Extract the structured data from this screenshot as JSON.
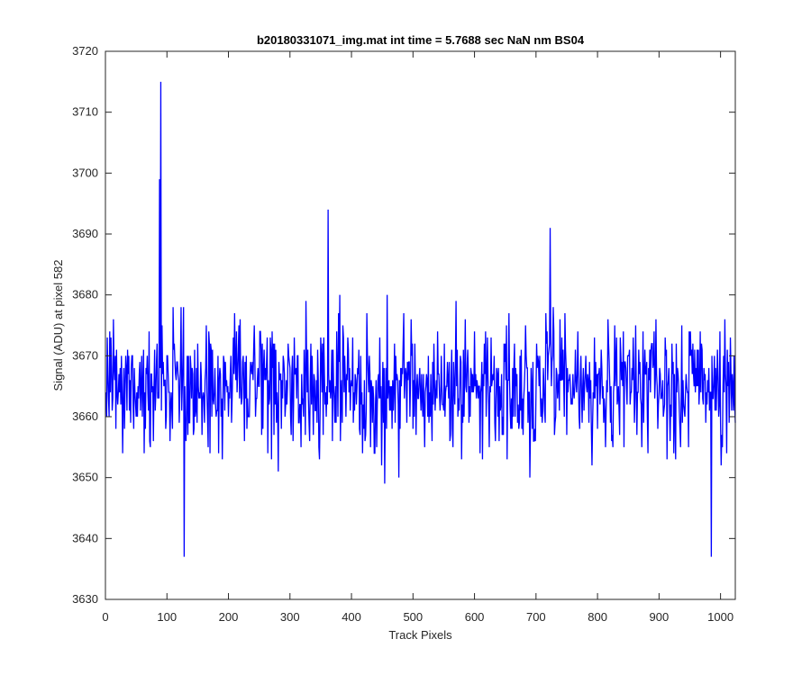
{
  "chart_data": {
    "type": "line",
    "title": "b20180331071_img.mat int time = 5.7688 sec  NaN nm BS04",
    "xlabel": "Track Pixels",
    "ylabel": "Signal (ADU) at pixel 582",
    "xlim": [
      0,
      1024
    ],
    "ylim": [
      3630,
      3720
    ],
    "xticks": [
      0,
      100,
      200,
      300,
      400,
      500,
      600,
      700,
      800,
      900,
      1000
    ],
    "yticks": [
      3630,
      3640,
      3650,
      3660,
      3670,
      3680,
      3690,
      3700,
      3710,
      3720
    ],
    "grid": false,
    "legend": "none",
    "line_color": "#0000ff",
    "series": [
      {
        "x_start": 1,
        "x_step": 1,
        "approx_mean": 3665,
        "approx_range": [
          3637,
          3715
        ],
        "notable_points": [
          {
            "x": 88,
            "y": 3699
          },
          {
            "x": 90,
            "y": 3715
          },
          {
            "x": 128,
            "y": 3637
          },
          {
            "x": 362,
            "y": 3694
          },
          {
            "x": 723,
            "y": 3691
          },
          {
            "x": 985,
            "y": 3637
          }
        ]
      }
    ]
  }
}
